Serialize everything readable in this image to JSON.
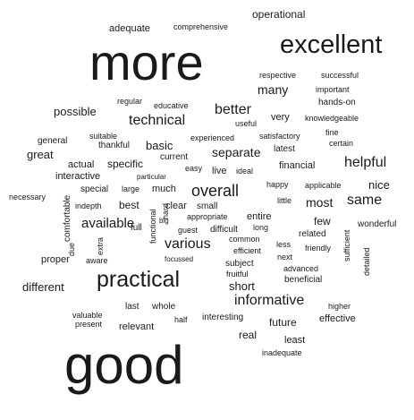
{
  "text_color": "#1a1a1a",
  "background_color": "#ffffff",
  "words": [
    "operational",
    "adequate",
    "comprehensive",
    "more",
    "excellent",
    "respective",
    "successful",
    "important",
    "hands-on",
    "many",
    "regular",
    "educative",
    "better",
    "possible",
    "useful",
    "very",
    "knowledgeable",
    "technical",
    "fine",
    "suitable",
    "certain",
    "general",
    "thankful",
    "basic",
    "experienced",
    "satisfactory",
    "latest",
    "great",
    "current",
    "separate",
    "helpful",
    "actual",
    "specific",
    "easy",
    "live",
    "ideal",
    "financial",
    "interactive",
    "particular",
    "happy",
    "applicable",
    "nice",
    "necessary",
    "special",
    "large",
    "much",
    "overall",
    "little",
    "most",
    "same",
    "indepth",
    "best",
    "clear",
    "small",
    "comfortable",
    "hard",
    "few",
    "available",
    "big",
    "appropriate",
    "functional",
    "entire",
    "related",
    "wonderful",
    "guest",
    "difficult",
    "long",
    "due",
    "extra",
    "full",
    "various",
    "common",
    "friendly",
    "efficient",
    "less",
    "sufficient",
    "proper",
    "aware",
    "focussed",
    "next",
    "subject",
    "advanced",
    "detailed",
    "fruitful",
    "different",
    "practical",
    "short",
    "beneficial",
    "informative",
    "last",
    "whole",
    "higher",
    "valuable",
    "present",
    "half",
    "interesting",
    "future",
    "effective",
    "relevant",
    "real",
    "least",
    "inadequate",
    "good"
  ]
}
